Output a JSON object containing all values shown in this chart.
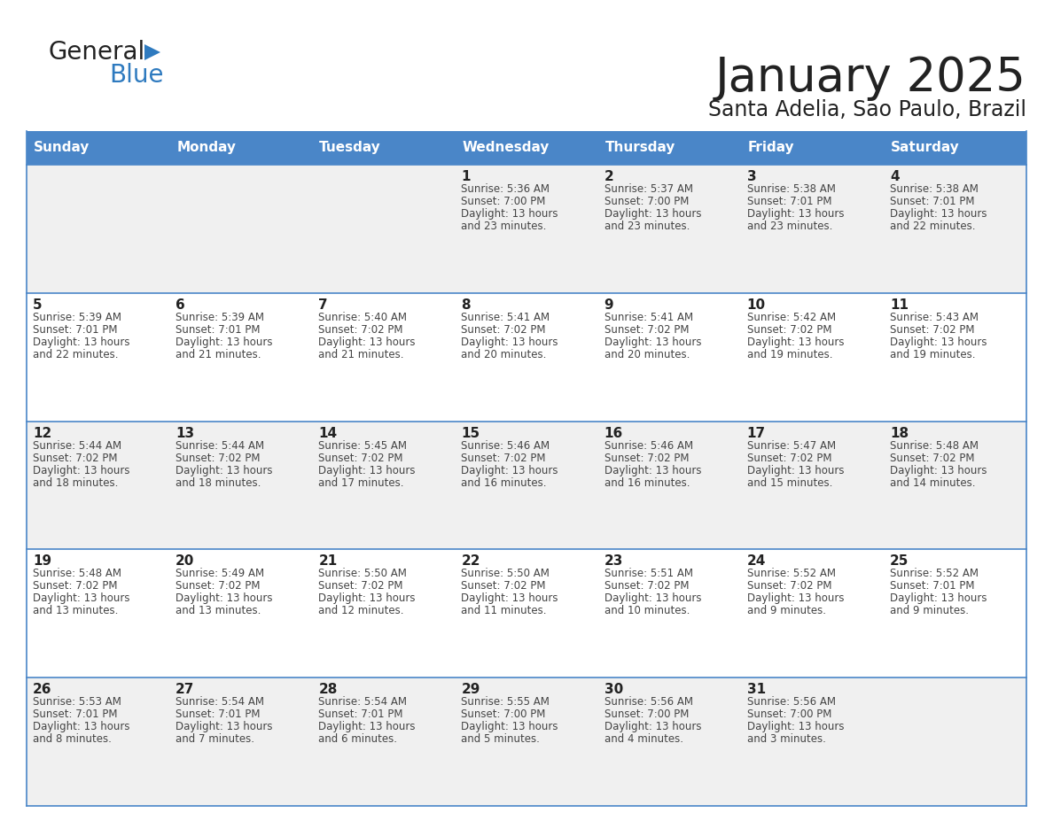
{
  "title": "January 2025",
  "subtitle": "Santa Adelia, Sao Paulo, Brazil",
  "header_bg": "#4a86c8",
  "header_text_color": "#ffffff",
  "row_bg_even": "#f0f0f0",
  "row_bg_odd": "#ffffff",
  "separator_color": "#4a86c8",
  "days_of_week": [
    "Sunday",
    "Monday",
    "Tuesday",
    "Wednesday",
    "Thursday",
    "Friday",
    "Saturday"
  ],
  "title_color": "#222222",
  "subtitle_color": "#222222",
  "day_number_color": "#222222",
  "cell_text_color": "#444444",
  "logo_general_color": "#222222",
  "logo_blue_color": "#2e7abf",
  "calendar_data": [
    [
      {
        "day": "",
        "sunrise": "",
        "sunset": "",
        "daylight_h": "",
        "daylight_m": ""
      },
      {
        "day": "",
        "sunrise": "",
        "sunset": "",
        "daylight_h": "",
        "daylight_m": ""
      },
      {
        "day": "",
        "sunrise": "",
        "sunset": "",
        "daylight_h": "",
        "daylight_m": ""
      },
      {
        "day": "1",
        "sunrise": "5:36 AM",
        "sunset": "7:00 PM",
        "daylight_h": "13 hours",
        "daylight_m": "and 23 minutes."
      },
      {
        "day": "2",
        "sunrise": "5:37 AM",
        "sunset": "7:00 PM",
        "daylight_h": "13 hours",
        "daylight_m": "and 23 minutes."
      },
      {
        "day": "3",
        "sunrise": "5:38 AM",
        "sunset": "7:01 PM",
        "daylight_h": "13 hours",
        "daylight_m": "and 23 minutes."
      },
      {
        "day": "4",
        "sunrise": "5:38 AM",
        "sunset": "7:01 PM",
        "daylight_h": "13 hours",
        "daylight_m": "and 22 minutes."
      }
    ],
    [
      {
        "day": "5",
        "sunrise": "5:39 AM",
        "sunset": "7:01 PM",
        "daylight_h": "13 hours",
        "daylight_m": "and 22 minutes."
      },
      {
        "day": "6",
        "sunrise": "5:39 AM",
        "sunset": "7:01 PM",
        "daylight_h": "13 hours",
        "daylight_m": "and 21 minutes."
      },
      {
        "day": "7",
        "sunrise": "5:40 AM",
        "sunset": "7:02 PM",
        "daylight_h": "13 hours",
        "daylight_m": "and 21 minutes."
      },
      {
        "day": "8",
        "sunrise": "5:41 AM",
        "sunset": "7:02 PM",
        "daylight_h": "13 hours",
        "daylight_m": "and 20 minutes."
      },
      {
        "day": "9",
        "sunrise": "5:41 AM",
        "sunset": "7:02 PM",
        "daylight_h": "13 hours",
        "daylight_m": "and 20 minutes."
      },
      {
        "day": "10",
        "sunrise": "5:42 AM",
        "sunset": "7:02 PM",
        "daylight_h": "13 hours",
        "daylight_m": "and 19 minutes."
      },
      {
        "day": "11",
        "sunrise": "5:43 AM",
        "sunset": "7:02 PM",
        "daylight_h": "13 hours",
        "daylight_m": "and 19 minutes."
      }
    ],
    [
      {
        "day": "12",
        "sunrise": "5:44 AM",
        "sunset": "7:02 PM",
        "daylight_h": "13 hours",
        "daylight_m": "and 18 minutes."
      },
      {
        "day": "13",
        "sunrise": "5:44 AM",
        "sunset": "7:02 PM",
        "daylight_h": "13 hours",
        "daylight_m": "and 18 minutes."
      },
      {
        "day": "14",
        "sunrise": "5:45 AM",
        "sunset": "7:02 PM",
        "daylight_h": "13 hours",
        "daylight_m": "and 17 minutes."
      },
      {
        "day": "15",
        "sunrise": "5:46 AM",
        "sunset": "7:02 PM",
        "daylight_h": "13 hours",
        "daylight_m": "and 16 minutes."
      },
      {
        "day": "16",
        "sunrise": "5:46 AM",
        "sunset": "7:02 PM",
        "daylight_h": "13 hours",
        "daylight_m": "and 16 minutes."
      },
      {
        "day": "17",
        "sunrise": "5:47 AM",
        "sunset": "7:02 PM",
        "daylight_h": "13 hours",
        "daylight_m": "and 15 minutes."
      },
      {
        "day": "18",
        "sunrise": "5:48 AM",
        "sunset": "7:02 PM",
        "daylight_h": "13 hours",
        "daylight_m": "and 14 minutes."
      }
    ],
    [
      {
        "day": "19",
        "sunrise": "5:48 AM",
        "sunset": "7:02 PM",
        "daylight_h": "13 hours",
        "daylight_m": "and 13 minutes."
      },
      {
        "day": "20",
        "sunrise": "5:49 AM",
        "sunset": "7:02 PM",
        "daylight_h": "13 hours",
        "daylight_m": "and 13 minutes."
      },
      {
        "day": "21",
        "sunrise": "5:50 AM",
        "sunset": "7:02 PM",
        "daylight_h": "13 hours",
        "daylight_m": "and 12 minutes."
      },
      {
        "day": "22",
        "sunrise": "5:50 AM",
        "sunset": "7:02 PM",
        "daylight_h": "13 hours",
        "daylight_m": "and 11 minutes."
      },
      {
        "day": "23",
        "sunrise": "5:51 AM",
        "sunset": "7:02 PM",
        "daylight_h": "13 hours",
        "daylight_m": "and 10 minutes."
      },
      {
        "day": "24",
        "sunrise": "5:52 AM",
        "sunset": "7:02 PM",
        "daylight_h": "13 hours",
        "daylight_m": "and 9 minutes."
      },
      {
        "day": "25",
        "sunrise": "5:52 AM",
        "sunset": "7:01 PM",
        "daylight_h": "13 hours",
        "daylight_m": "and 9 minutes."
      }
    ],
    [
      {
        "day": "26",
        "sunrise": "5:53 AM",
        "sunset": "7:01 PM",
        "daylight_h": "13 hours",
        "daylight_m": "and 8 minutes."
      },
      {
        "day": "27",
        "sunrise": "5:54 AM",
        "sunset": "7:01 PM",
        "daylight_h": "13 hours",
        "daylight_m": "and 7 minutes."
      },
      {
        "day": "28",
        "sunrise": "5:54 AM",
        "sunset": "7:01 PM",
        "daylight_h": "13 hours",
        "daylight_m": "and 6 minutes."
      },
      {
        "day": "29",
        "sunrise": "5:55 AM",
        "sunset": "7:00 PM",
        "daylight_h": "13 hours",
        "daylight_m": "and 5 minutes."
      },
      {
        "day": "30",
        "sunrise": "5:56 AM",
        "sunset": "7:00 PM",
        "daylight_h": "13 hours",
        "daylight_m": "and 4 minutes."
      },
      {
        "day": "31",
        "sunrise": "5:56 AM",
        "sunset": "7:00 PM",
        "daylight_h": "13 hours",
        "daylight_m": "and 3 minutes."
      },
      {
        "day": "",
        "sunrise": "",
        "sunset": "",
        "daylight_h": "",
        "daylight_m": ""
      }
    ]
  ]
}
